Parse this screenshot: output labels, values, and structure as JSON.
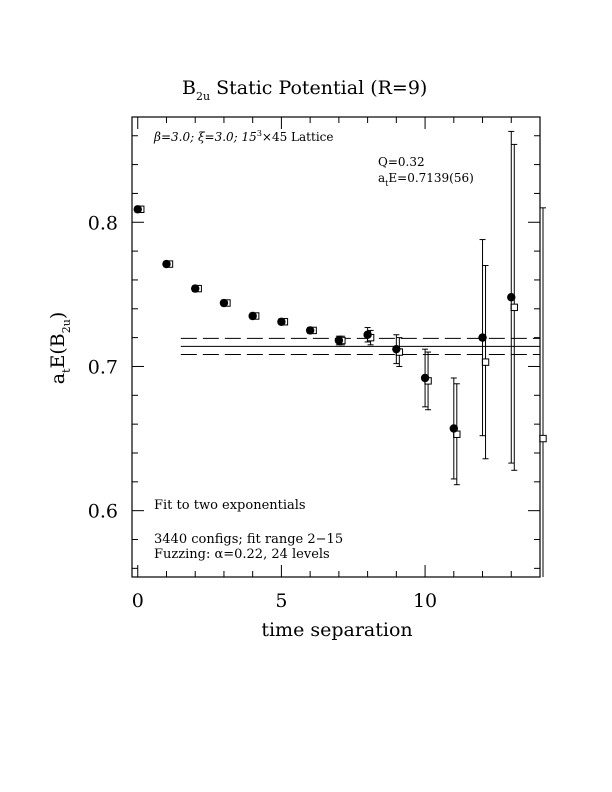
{
  "chart_data": {
    "type": "scatter",
    "title": {
      "main": "B",
      "sub": "2u",
      "rest": " Static Potential (R=9)"
    },
    "xlabel": "time separation",
    "ylabel": {
      "pre": "a",
      "pre_sub": "t",
      "mid": "E(B",
      "mid_sub": "2u",
      "post": ")"
    },
    "xlim": [
      -0.2,
      14.0
    ],
    "ylim": [
      0.554,
      0.873
    ],
    "x_ticks": [
      0,
      5,
      10
    ],
    "y_ticks": [
      0.6,
      0.7,
      0.8
    ],
    "y_tick_labels": [
      "0.6",
      "0.7",
      "0.8"
    ],
    "x_tick_labels": [
      "0",
      "5",
      "10"
    ],
    "annotations": {
      "lattice": {
        "beta": "β=3.0; ",
        "xi": "ξ=3.0; 15",
        "sup": "3",
        "rest": "×45 Lattice"
      },
      "q": "Q=0.32",
      "energy": {
        "pre": "a",
        "sub": "t",
        "rest": "E=0.7139(56)"
      },
      "fit": "Fit to two exponentials",
      "configs": "3440 configs; fit range 2−15",
      "fuzzing": "Fuzzing: α=0.22, 24 levels"
    },
    "fit": {
      "value": 0.7139,
      "error": 0.0056,
      "x_range": [
        1.5,
        14.0
      ]
    },
    "series": [
      {
        "marker": "filled-circle",
        "points": [
          {
            "x": 0,
            "y": 0.809,
            "err": 0.002
          },
          {
            "x": 1,
            "y": 0.771,
            "err": 0.002
          },
          {
            "x": 2,
            "y": 0.754,
            "err": 0.002
          },
          {
            "x": 3,
            "y": 0.744,
            "err": 0.002
          },
          {
            "x": 4,
            "y": 0.735,
            "err": 0.002
          },
          {
            "x": 5,
            "y": 0.731,
            "err": 0.002
          },
          {
            "x": 6,
            "y": 0.725,
            "err": 0.002
          },
          {
            "x": 7,
            "y": 0.718,
            "err": 0.003
          },
          {
            "x": 8,
            "y": 0.722,
            "err": 0.005
          },
          {
            "x": 9,
            "y": 0.712,
            "err": 0.01
          },
          {
            "x": 10,
            "y": 0.692,
            "err": 0.02
          },
          {
            "x": 11,
            "y": 0.657,
            "err": 0.035
          },
          {
            "x": 12,
            "y": 0.72,
            "err": 0.068
          },
          {
            "x": 13,
            "y": 0.748,
            "err": 0.115
          },
          {
            "x": 14,
            "y": 0.7,
            "err": 0.18
          }
        ]
      },
      {
        "marker": "open-square",
        "points": [
          {
            "x": 0,
            "y": 0.809,
            "err": 0.002
          },
          {
            "x": 1,
            "y": 0.771,
            "err": 0.002
          },
          {
            "x": 2,
            "y": 0.754,
            "err": 0.002
          },
          {
            "x": 3,
            "y": 0.744,
            "err": 0.002
          },
          {
            "x": 4,
            "y": 0.735,
            "err": 0.002
          },
          {
            "x": 5,
            "y": 0.731,
            "err": 0.002
          },
          {
            "x": 6,
            "y": 0.725,
            "err": 0.002
          },
          {
            "x": 7,
            "y": 0.718,
            "err": 0.003
          },
          {
            "x": 8,
            "y": 0.72,
            "err": 0.005
          },
          {
            "x": 9,
            "y": 0.71,
            "err": 0.01
          },
          {
            "x": 10,
            "y": 0.69,
            "err": 0.02
          },
          {
            "x": 11,
            "y": 0.653,
            "err": 0.035
          },
          {
            "x": 12,
            "y": 0.703,
            "err": 0.067
          },
          {
            "x": 13,
            "y": 0.741,
            "err": 0.113
          },
          {
            "x": 14,
            "y": 0.65,
            "err": 0.16
          }
        ]
      }
    ],
    "grid": false,
    "legend": "none",
    "colors": {
      "ink": "#000000",
      "background": "#ffffff"
    }
  }
}
